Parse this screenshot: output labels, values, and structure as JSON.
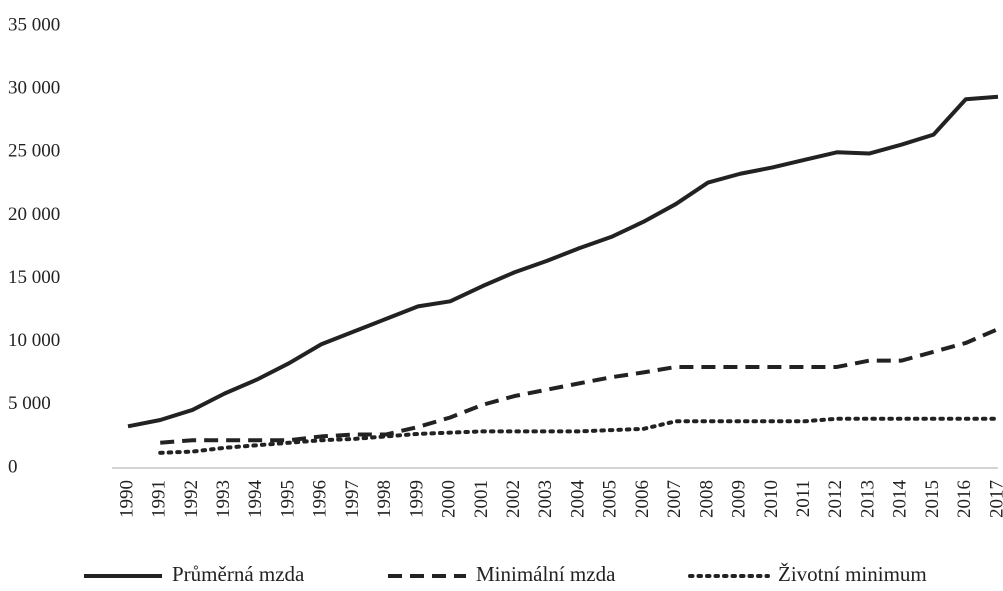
{
  "chart_data": {
    "type": "line",
    "x": [
      1990,
      1991,
      1992,
      1993,
      1994,
      1995,
      1996,
      1997,
      1998,
      1999,
      2000,
      2001,
      2002,
      2003,
      2004,
      2005,
      2006,
      2007,
      2008,
      2009,
      2010,
      2011,
      2012,
      2013,
      2014,
      2015,
      2016,
      2017
    ],
    "series": [
      {
        "name": "Průměrná mzda",
        "color": "#222222",
        "dash": "solid",
        "values": [
          3300,
          3800,
          4600,
          5900,
          7000,
          8300,
          9800,
          10800,
          11800,
          12800,
          13200,
          14400,
          15500,
          16400,
          17400,
          18300,
          19500,
          20900,
          22600,
          23300,
          23800,
          24400,
          25000,
          24900,
          25600,
          26400,
          29200,
          29400
        ]
      },
      {
        "name": "Minimální mzda",
        "color": "#222222",
        "dash": "dashed",
        "values": [
          null,
          2000,
          2200,
          2200,
          2200,
          2200,
          2500,
          2650,
          2650,
          3250,
          4000,
          5000,
          5700,
          6200,
          6700,
          7185,
          7570,
          8000,
          8000,
          8000,
          8000,
          8000,
          8000,
          8500,
          8500,
          9200,
          9900,
          11000
        ]
      },
      {
        "name": "Životní minimum",
        "color": "#222222",
        "dash": "dotted",
        "values": [
          null,
          1200,
          1300,
          1600,
          1800,
          2000,
          2200,
          2300,
          2500,
          2700,
          2800,
          2900,
          2900,
          2900,
          2900,
          3000,
          3100,
          3700,
          3700,
          3700,
          3700,
          3700,
          3900,
          3900,
          3900,
          3900,
          3900,
          3900
        ]
      }
    ],
    "xlim": [
      1990,
      2017
    ],
    "ylim": [
      0,
      35000
    ],
    "yticks": [
      0,
      {
        "value": 5000,
        "label": "5 000"
      },
      {
        "value": 10000,
        "label": "10 000"
      },
      {
        "value": 15000,
        "label": "15 000"
      },
      {
        "value": 20000,
        "label": "20 000"
      },
      {
        "value": 25000,
        "label": "25 000"
      },
      {
        "value": 30000,
        "label": "30 000"
      },
      {
        "value": 35000,
        "label": "35 000"
      }
    ],
    "grid": false,
    "legend": "bottom"
  }
}
